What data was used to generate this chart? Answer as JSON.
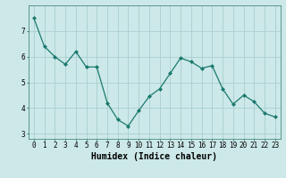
{
  "x": [
    0,
    1,
    2,
    3,
    4,
    5,
    6,
    7,
    8,
    9,
    10,
    11,
    12,
    13,
    14,
    15,
    16,
    17,
    18,
    19,
    20,
    21,
    22,
    23
  ],
  "y": [
    7.5,
    6.4,
    6.0,
    5.7,
    6.2,
    5.6,
    5.6,
    4.2,
    3.55,
    3.3,
    3.9,
    4.45,
    4.75,
    5.35,
    5.95,
    5.8,
    5.55,
    5.65,
    4.75,
    4.15,
    4.5,
    4.25,
    3.8,
    3.65
  ],
  "line_color": "#1a7a6e",
  "marker": "D",
  "marker_size": 2.0,
  "bg_color": "#cce8e8",
  "grid_color": "#aacece",
  "xlabel": "Humidex (Indice chaleur)",
  "ylim": [
    2.8,
    8.0
  ],
  "xlim": [
    -0.5,
    23.5
  ],
  "yticks": [
    3,
    4,
    5,
    6,
    7
  ],
  "xticks": [
    0,
    1,
    2,
    3,
    4,
    5,
    6,
    7,
    8,
    9,
    10,
    11,
    12,
    13,
    14,
    15,
    16,
    17,
    18,
    19,
    20,
    21,
    22,
    23
  ],
  "tick_fontsize": 5.5,
  "xlabel_fontsize": 7.0
}
